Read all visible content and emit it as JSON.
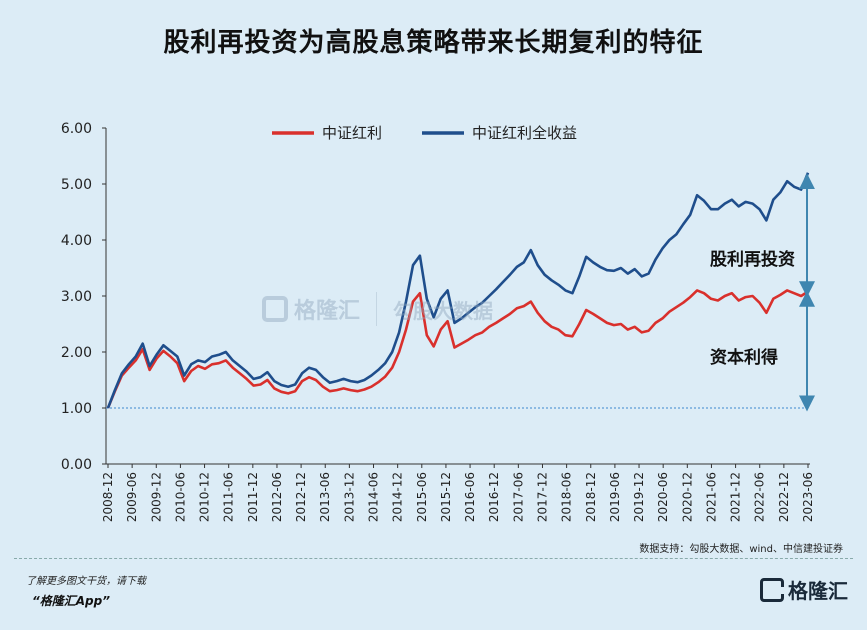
{
  "title": "股利再投资为高股息策略带来长期复利的特征",
  "chart_data": {
    "type": "line",
    "legend": [
      "中证红利",
      "中证红利全收益"
    ],
    "legend_placement": "top",
    "colors": {
      "中证红利": "#d9302c",
      "中证红利全收益": "#1f4e8c",
      "baseline": "#5b9bd5",
      "arrow": "#3f86b0"
    },
    "ylim": [
      0,
      6
    ],
    "yticks": [
      "0.00",
      "1.00",
      "2.00",
      "3.00",
      "4.00",
      "5.00",
      "6.00"
    ],
    "xticks": [
      "2008-12",
      "2009-06",
      "2009-12",
      "2010-06",
      "2010-12",
      "2011-06",
      "2011-12",
      "2012-06",
      "2012-12",
      "2013-06",
      "2013-12",
      "2014-06",
      "2014-12",
      "2015-06",
      "2015-12",
      "2016-06",
      "2016-12",
      "2017-06",
      "2017-12",
      "2018-06",
      "2018-12",
      "2019-06",
      "2019-12",
      "2020-06",
      "2020-12",
      "2021-06",
      "2021-12",
      "2022-06",
      "2022-12",
      "2023-06"
    ],
    "baseline": 1.0,
    "grid": false,
    "annotations": [
      "股利再投资",
      "资本利得"
    ],
    "series": [
      {
        "name": "中证红利",
        "values": [
          1.0,
          1.3,
          1.58,
          1.72,
          1.85,
          2.05,
          1.68,
          1.88,
          2.02,
          1.92,
          1.8,
          1.48,
          1.66,
          1.75,
          1.7,
          1.78,
          1.8,
          1.85,
          1.72,
          1.62,
          1.52,
          1.4,
          1.42,
          1.5,
          1.35,
          1.29,
          1.26,
          1.3,
          1.48,
          1.55,
          1.5,
          1.38,
          1.3,
          1.32,
          1.35,
          1.32,
          1.3,
          1.33,
          1.38,
          1.46,
          1.56,
          1.72,
          2.0,
          2.4,
          2.9,
          3.05,
          2.3,
          2.1,
          2.4,
          2.55,
          2.08,
          2.15,
          2.22,
          2.3,
          2.35,
          2.45,
          2.52,
          2.6,
          2.68,
          2.78,
          2.82,
          2.9,
          2.7,
          2.55,
          2.45,
          2.4,
          2.3,
          2.28,
          2.5,
          2.75,
          2.68,
          2.6,
          2.52,
          2.48,
          2.5,
          2.4,
          2.45,
          2.35,
          2.38,
          2.52,
          2.6,
          2.72,
          2.8,
          2.88,
          2.98,
          3.1,
          3.05,
          2.95,
          2.92,
          3.0,
          3.05,
          2.92,
          2.98,
          3.0,
          2.88,
          2.7,
          2.95,
          3.02,
          3.1,
          3.05,
          3.0,
          3.08
        ]
      },
      {
        "name": "中证红利全收益",
        "values": [
          1.0,
          1.32,
          1.62,
          1.78,
          1.92,
          2.15,
          1.75,
          1.95,
          2.12,
          2.02,
          1.92,
          1.58,
          1.78,
          1.85,
          1.82,
          1.92,
          1.95,
          2.0,
          1.85,
          1.75,
          1.65,
          1.52,
          1.55,
          1.64,
          1.48,
          1.41,
          1.38,
          1.42,
          1.62,
          1.72,
          1.68,
          1.55,
          1.45,
          1.48,
          1.52,
          1.48,
          1.46,
          1.5,
          1.58,
          1.68,
          1.8,
          2.0,
          2.35,
          2.9,
          3.55,
          3.72,
          2.95,
          2.62,
          2.95,
          3.1,
          2.52,
          2.6,
          2.7,
          2.8,
          2.88,
          3.0,
          3.12,
          3.25,
          3.38,
          3.52,
          3.6,
          3.82,
          3.55,
          3.38,
          3.28,
          3.2,
          3.1,
          3.05,
          3.35,
          3.7,
          3.6,
          3.52,
          3.46,
          3.45,
          3.5,
          3.4,
          3.48,
          3.35,
          3.4,
          3.65,
          3.85,
          4.0,
          4.1,
          4.28,
          4.45,
          4.8,
          4.7,
          4.55,
          4.55,
          4.65,
          4.72,
          4.6,
          4.68,
          4.65,
          4.55,
          4.35,
          4.72,
          4.85,
          5.05,
          4.95,
          4.9,
          5.2
        ]
      }
    ]
  },
  "source": "数据支持：勾股大数据、wind、中信建投证券",
  "footer": {
    "line1": "了解更多图文干货，请下载",
    "line2": "“格隆汇App”",
    "brand": "格隆汇"
  },
  "watermark": {
    "brand": "格隆汇",
    "text": "勾股大数据"
  }
}
